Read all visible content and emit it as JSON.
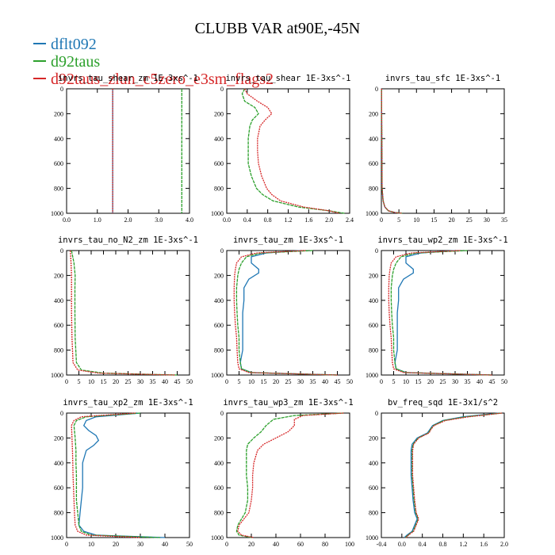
{
  "title": "CLUBB VAR at90E,-45N",
  "legend": [
    {
      "name": "dflt092",
      "color": "#1f77b4"
    },
    {
      "name": "d92taus",
      "color": "#2ca02c"
    },
    {
      "name": "d92taus_zlun_c5zero_e3sm_flags2",
      "color": "#d62728"
    }
  ],
  "chart_data": [
    {
      "type": "line",
      "title": "invrs_tau_shear_zm 1E-3xs^-1",
      "xlim": [
        0,
        4
      ],
      "xticks": [
        0,
        1,
        2,
        3,
        4
      ],
      "tickfmt": 1,
      "ylim": [
        1000,
        0
      ],
      "yticks": [
        0,
        200,
        400,
        600,
        800,
        1000
      ],
      "series": [
        {
          "name": "dflt092",
          "color": "#1f77b4",
          "dash": "",
          "y": [
            0,
            1000
          ],
          "x": [
            1.5,
            1.5
          ]
        },
        {
          "name": "d92taus",
          "color": "#2ca02c",
          "dash": "4,1",
          "y": [
            0,
            1000
          ],
          "x": [
            3.75,
            3.75
          ]
        },
        {
          "name": "d92taus_zlun_c5zero_e3sm_flags2",
          "color": "#d62728",
          "dash": "2,1",
          "y": [
            0,
            1000
          ],
          "x": [
            1.5,
            1.5
          ]
        }
      ]
    },
    {
      "type": "line",
      "title": "invrs_tau_shear 1E-3xs^-1",
      "xlim": [
        0,
        2.4
      ],
      "xticks": [
        0,
        0.4,
        0.8,
        1.2,
        1.6,
        2.0,
        2.4
      ],
      "tickfmt": 1,
      "ylim": [
        1000,
        0
      ],
      "yticks": [
        0,
        200,
        400,
        600,
        800,
        1000
      ],
      "series": [
        {
          "name": "dflt092",
          "color": "#1f77b4",
          "dash": "",
          "y": [
            0,
            1000
          ],
          "x": [
            null,
            null
          ]
        },
        {
          "name": "d92taus",
          "color": "#2ca02c",
          "dash": "4,1",
          "y": [
            0,
            40,
            100,
            150,
            200,
            250,
            300,
            400,
            500,
            600,
            700,
            800,
            850,
            900,
            950,
            980,
            1000
          ],
          "x": [
            0.35,
            0.3,
            0.35,
            0.55,
            0.62,
            0.5,
            0.45,
            0.42,
            0.42,
            0.42,
            0.48,
            0.58,
            0.7,
            0.9,
            1.4,
            2.0,
            2.3
          ]
        },
        {
          "name": "d92taus_zlun_c5zero_e3sm_flags2",
          "color": "#d62728",
          "dash": "2,1",
          "y": [
            0,
            40,
            100,
            150,
            200,
            250,
            300,
            400,
            500,
            600,
            700,
            800,
            850,
            900,
            950,
            980,
            1000
          ],
          "x": [
            0.35,
            0.4,
            0.6,
            0.8,
            0.88,
            0.75,
            0.65,
            0.6,
            0.6,
            0.62,
            0.68,
            0.78,
            0.88,
            1.05,
            1.5,
            2.0,
            2.2
          ]
        }
      ]
    },
    {
      "type": "line",
      "title": "invrs_tau_sfc 1E-3xs^-1",
      "xlim": [
        0,
        35
      ],
      "xticks": [
        0,
        5,
        10,
        15,
        20,
        25,
        30,
        35
      ],
      "tickfmt": 0,
      "ylim": [
        1000,
        0
      ],
      "yticks": [
        0,
        200,
        400,
        600,
        800,
        1000
      ],
      "series": [
        {
          "name": "dflt092",
          "color": "#1f77b4",
          "dash": "",
          "y": [
            0,
            800,
            900,
            950,
            980,
            995,
            1000
          ],
          "x": [
            0.05,
            0.2,
            0.5,
            1,
            2,
            4,
            6
          ]
        },
        {
          "name": "d92taus",
          "color": "#2ca02c",
          "dash": "4,1",
          "y": [
            0,
            800,
            900,
            950,
            980,
            995,
            1000
          ],
          "x": [
            0.05,
            0.2,
            0.5,
            1,
            2,
            4,
            6
          ]
        },
        {
          "name": "d92taus_zlun_c5zero_e3sm_flags2",
          "color": "#d62728",
          "dash": "2,1",
          "y": [
            0,
            800,
            900,
            950,
            980,
            995,
            1000
          ],
          "x": [
            0.05,
            0.2,
            0.5,
            1,
            2,
            4,
            6
          ]
        }
      ]
    },
    {
      "type": "line",
      "title": "invrs_tau_no_N2_zm 1E-3xs^-1",
      "xlim": [
        0,
        50
      ],
      "xticks": [
        0,
        5,
        10,
        15,
        20,
        25,
        30,
        35,
        40,
        45,
        50
      ],
      "tickfmt": 0,
      "ylim": [
        1000,
        0
      ],
      "yticks": [
        0,
        200,
        400,
        600,
        800,
        1000
      ],
      "series": [
        {
          "name": "dflt092",
          "color": "#1f77b4",
          "dash": "",
          "y": [
            0,
            1000
          ],
          "x": [
            null,
            null
          ]
        },
        {
          "name": "d92taus",
          "color": "#2ca02c",
          "dash": "4,1",
          "y": [
            0,
            100,
            200,
            300,
            500,
            700,
            900,
            960,
            985,
            1000
          ],
          "x": [
            2,
            3,
            3.5,
            3.4,
            3.4,
            3.5,
            4,
            6,
            15,
            45
          ]
        },
        {
          "name": "d92taus_zlun_c5zero_e3sm_flags2",
          "color": "#d62728",
          "dash": "2,1",
          "y": [
            0,
            100,
            200,
            300,
            500,
            700,
            900,
            960,
            985,
            1000
          ],
          "x": [
            1.5,
            1.8,
            2,
            2,
            2,
            2.2,
            2.6,
            4.5,
            13,
            44
          ]
        }
      ]
    },
    {
      "type": "line",
      "title": "invrs_tau_zm 1E-3xs^-1",
      "xlim": [
        0,
        50
      ],
      "xticks": [
        0,
        5,
        10,
        15,
        20,
        25,
        30,
        35,
        40,
        45,
        50
      ],
      "tickfmt": 0,
      "ylim": [
        1000,
        0
      ],
      "yticks": [
        0,
        200,
        400,
        600,
        800,
        1000
      ],
      "series": [
        {
          "name": "dflt092",
          "color": "#1f77b4",
          "dash": "",
          "y": [
            0,
            20,
            50,
            100,
            150,
            180,
            230,
            300,
            400,
            500,
            600,
            700,
            800,
            850,
            900,
            950,
            980,
            1000
          ],
          "x": [
            30,
            16,
            10,
            10,
            13,
            13,
            9,
            7,
            7,
            6.5,
            6.5,
            6.5,
            6.5,
            6,
            5.5,
            6,
            10,
            45
          ]
        },
        {
          "name": "d92taus",
          "color": "#2ca02c",
          "dash": "4,1",
          "y": [
            0,
            20,
            50,
            100,
            150,
            200,
            300,
            400,
            500,
            600,
            700,
            800,
            900,
            950,
            980,
            1000
          ],
          "x": [
            35,
            14,
            8,
            6,
            5,
            4.5,
            4,
            4,
            4.2,
            4.5,
            5,
            5,
            5.5,
            6,
            10,
            45
          ]
        },
        {
          "name": "d92taus_zlun_c5zero_e3sm_flags2",
          "color": "#d62728",
          "dash": "2,1",
          "y": [
            0,
            20,
            50,
            100,
            150,
            200,
            300,
            400,
            500,
            600,
            700,
            800,
            900,
            950,
            980,
            1000
          ],
          "x": [
            32,
            12,
            6,
            4,
            3.5,
            3.2,
            3,
            3,
            3.2,
            3.5,
            4,
            4.2,
            4.5,
            5,
            9,
            45
          ]
        }
      ]
    },
    {
      "type": "line",
      "title": "invrs_tau_wp2_zm 1E-3xs^-1",
      "xlim": [
        0,
        50
      ],
      "xticks": [
        0,
        5,
        10,
        15,
        20,
        25,
        30,
        35,
        40,
        45,
        50
      ],
      "tickfmt": 0,
      "ylim": [
        1000,
        0
      ],
      "yticks": [
        0,
        200,
        400,
        600,
        800,
        1000
      ],
      "series": [
        {
          "name": "dflt092",
          "color": "#1f77b4",
          "dash": "",
          "y": [
            0,
            20,
            50,
            100,
            150,
            180,
            230,
            300,
            400,
            500,
            600,
            700,
            800,
            850,
            900,
            950,
            980,
            1000
          ],
          "x": [
            30,
            16,
            10,
            10,
            13,
            13,
            9,
            7,
            7,
            6.5,
            6.5,
            6.5,
            6.5,
            6,
            5.5,
            6,
            10,
            45
          ]
        },
        {
          "name": "d92taus",
          "color": "#2ca02c",
          "dash": "4,1",
          "y": [
            0,
            20,
            50,
            100,
            150,
            200,
            300,
            400,
            500,
            600,
            700,
            800,
            900,
            950,
            980,
            1000
          ],
          "x": [
            35,
            14,
            8,
            6,
            5,
            4.5,
            4,
            4,
            4.2,
            4.5,
            5,
            5,
            5.5,
            6,
            10,
            45
          ]
        },
        {
          "name": "d92taus_zlun_c5zero_e3sm_flags2",
          "color": "#d62728",
          "dash": "2,1",
          "y": [
            0,
            20,
            50,
            100,
            150,
            200,
            300,
            400,
            500,
            600,
            700,
            800,
            900,
            950,
            980,
            1000
          ],
          "x": [
            32,
            12,
            6,
            4,
            3.5,
            3.2,
            3,
            3,
            3.2,
            3.5,
            4,
            4.2,
            4.5,
            5,
            9,
            45
          ]
        }
      ]
    },
    {
      "type": "line",
      "title": "invrs_tau_xp2_zm 1E-3xs^-1",
      "xlim": [
        0,
        50
      ],
      "xticks": [
        0,
        10,
        20,
        30,
        40,
        50
      ],
      "tickfmt": 0,
      "ylim": [
        1000,
        0
      ],
      "yticks": [
        0,
        200,
        400,
        600,
        800,
        1000
      ],
      "series": [
        {
          "name": "dflt092",
          "color": "#1f77b4",
          "dash": "",
          "y": [
            0,
            30,
            60,
            100,
            140,
            180,
            220,
            260,
            300,
            400,
            500,
            600,
            700,
            800,
            900,
            950,
            980,
            1000
          ],
          "x": [
            30,
            12,
            8,
            7,
            9,
            12,
            13,
            11,
            8,
            6.5,
            6.5,
            6.5,
            6,
            5.5,
            5,
            7,
            12,
            40
          ]
        },
        {
          "name": "d92taus",
          "color": "#2ca02c",
          "dash": "4,1",
          "y": [
            0,
            30,
            60,
            100,
            200,
            300,
            400,
            500,
            600,
            700,
            800,
            900,
            950,
            980,
            1000
          ],
          "x": [
            30,
            8,
            4,
            3,
            3.5,
            3.8,
            3.8,
            4,
            4,
            4,
            4.5,
            5,
            6,
            10,
            38
          ]
        },
        {
          "name": "d92taus_zlun_c5zero_e3sm_flags2",
          "color": "#d62728",
          "dash": "2,1",
          "y": [
            0,
            30,
            60,
            100,
            200,
            300,
            400,
            500,
            600,
            700,
            800,
            900,
            950,
            980,
            1000
          ],
          "x": [
            28,
            6,
            3,
            2,
            2.2,
            2.4,
            2.5,
            2.6,
            2.8,
            3,
            3.2,
            3.5,
            4.5,
            8,
            30
          ]
        }
      ]
    },
    {
      "type": "line",
      "title": "invrs_tau_wp3_zm 1E-3xs^-1",
      "xlim": [
        0,
        100
      ],
      "xticks": [
        0,
        20,
        40,
        60,
        80,
        100
      ],
      "tickfmt": 0,
      "ylim": [
        1000,
        0
      ],
      "yticks": [
        0,
        200,
        400,
        600,
        800,
        1000
      ],
      "series": [
        {
          "name": "dflt092",
          "color": "#1f77b4",
          "dash": "",
          "y": [
            0,
            1000
          ],
          "x": [
            null,
            null
          ]
        },
        {
          "name": "d92taus",
          "color": "#2ca02c",
          "dash": "4,1",
          "y": [
            0,
            20,
            50,
            100,
            150,
            200,
            250,
            300,
            400,
            500,
            600,
            700,
            800,
            850,
            900,
            950,
            980,
            1000
          ],
          "x": [
            95,
            55,
            38,
            32,
            28,
            22,
            17,
            16,
            16,
            16,
            17,
            17,
            15,
            12,
            9,
            8,
            10,
            20
          ]
        },
        {
          "name": "d92taus_zlun_c5zero_e3sm_flags2",
          "color": "#d62728",
          "dash": "2,1",
          "y": [
            0,
            20,
            50,
            100,
            150,
            200,
            250,
            300,
            400,
            500,
            600,
            700,
            800,
            850,
            900,
            950,
            980,
            1000
          ],
          "x": [
            95,
            62,
            55,
            55,
            50,
            40,
            30,
            25,
            22,
            21,
            21,
            20,
            18,
            14,
            10,
            9,
            12,
            22
          ]
        }
      ]
    },
    {
      "type": "line",
      "title": "bv_freq_sqd 1E-3x1/s^2",
      "xlim": [
        -0.4,
        2.0
      ],
      "xticks": [
        -0.4,
        0,
        0.4,
        0.8,
        1.2,
        1.6,
        2.0
      ],
      "tickfmt": 1,
      "ylim": [
        1000,
        0
      ],
      "yticks": [
        0,
        200,
        400,
        600,
        800,
        1000
      ],
      "series": [
        {
          "name": "dflt092",
          "color": "#1f77b4",
          "dash": "",
          "y": [
            0,
            30,
            60,
            100,
            130,
            160,
            200,
            250,
            300,
            400,
            500,
            600,
            700,
            800,
            850,
            900,
            950,
            980,
            1000
          ],
          "x": [
            1.9,
            1.2,
            0.8,
            0.6,
            0.55,
            0.5,
            0.3,
            0.2,
            0.18,
            0.18,
            0.18,
            0.2,
            0.22,
            0.25,
            0.3,
            0.25,
            0.2,
            0.1,
            0.05
          ]
        },
        {
          "name": "d92taus",
          "color": "#2ca02c",
          "dash": "4,1",
          "y": [
            0,
            30,
            60,
            100,
            130,
            160,
            200,
            250,
            300,
            400,
            500,
            600,
            700,
            800,
            850,
            900,
            950,
            980,
            1000
          ],
          "x": [
            1.95,
            1.25,
            0.82,
            0.62,
            0.56,
            0.52,
            0.32,
            0.22,
            0.2,
            0.2,
            0.2,
            0.22,
            0.24,
            0.27,
            0.32,
            0.27,
            0.22,
            0.12,
            0.07
          ]
        },
        {
          "name": "d92taus_zlun_c5zero_e3sm_flags2",
          "color": "#d62728",
          "dash": "2,1",
          "y": [
            0,
            30,
            60,
            100,
            130,
            160,
            200,
            250,
            300,
            400,
            500,
            600,
            700,
            800,
            850,
            900,
            950,
            980,
            1000
          ],
          "x": [
            1.95,
            1.3,
            0.85,
            0.63,
            0.57,
            0.53,
            0.33,
            0.23,
            0.21,
            0.21,
            0.21,
            0.23,
            0.25,
            0.28,
            0.33,
            0.28,
            0.23,
            0.13,
            0.08
          ]
        }
      ]
    }
  ]
}
